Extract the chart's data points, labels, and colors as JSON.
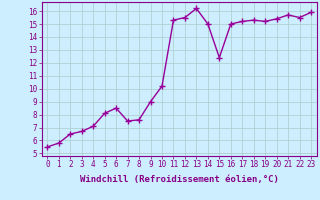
{
  "x": [
    0,
    1,
    2,
    3,
    4,
    5,
    6,
    7,
    8,
    9,
    10,
    11,
    12,
    13,
    14,
    15,
    16,
    17,
    18,
    19,
    20,
    21,
    22,
    23
  ],
  "y": [
    5.5,
    5.8,
    6.5,
    6.7,
    7.1,
    8.1,
    8.5,
    7.5,
    7.6,
    9.0,
    10.2,
    15.3,
    15.5,
    16.2,
    15.0,
    12.4,
    15.0,
    15.2,
    15.3,
    15.2,
    15.4,
    15.7,
    15.5,
    15.9
  ],
  "line_color": "#990099",
  "marker": "+",
  "marker_size": 4,
  "marker_linewidth": 1.0,
  "bg_color": "#cceeff",
  "grid_color": "#aacccc",
  "xlabel": "Windchill (Refroidissement éolien,°C)",
  "ylabel": "",
  "title": "",
  "xlim": [
    -0.5,
    23.5
  ],
  "ylim": [
    4.8,
    16.7
  ],
  "yticks": [
    5,
    6,
    7,
    8,
    9,
    10,
    11,
    12,
    13,
    14,
    15,
    16
  ],
  "xticks": [
    0,
    1,
    2,
    3,
    4,
    5,
    6,
    7,
    8,
    9,
    10,
    11,
    12,
    13,
    14,
    15,
    16,
    17,
    18,
    19,
    20,
    21,
    22,
    23
  ],
  "xtick_labels": [
    "0",
    "1",
    "2",
    "3",
    "4",
    "5",
    "6",
    "7",
    "8",
    "9",
    "10",
    "11",
    "12",
    "13",
    "14",
    "15",
    "16",
    "17",
    "18",
    "19",
    "20",
    "21",
    "22",
    "23"
  ],
  "font_color": "#880088",
  "tick_labelsize": 5.5,
  "xlabel_fontsize": 6.5,
  "linewidth": 1.0
}
